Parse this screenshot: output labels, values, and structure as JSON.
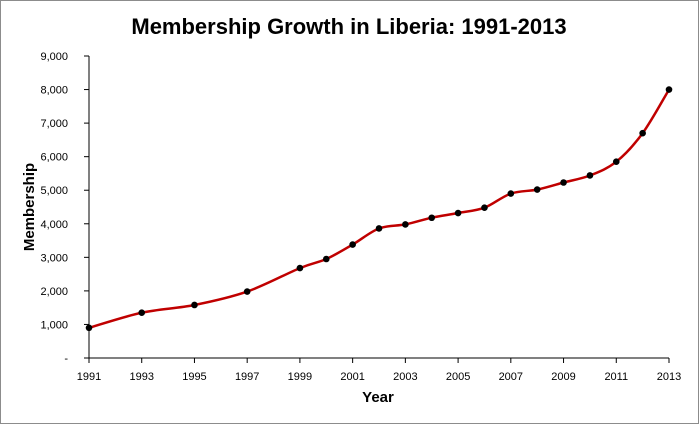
{
  "chart_data": {
    "type": "line",
    "title": "Membership Growth in Liberia: 1991-2013",
    "xlabel": "Year",
    "ylabel": "Membership",
    "xlim": [
      1991,
      2013
    ],
    "ylim": [
      0,
      9000
    ],
    "grid": false,
    "legend": "none",
    "x_ticks": [
      "1991",
      "1993",
      "1995",
      "1997",
      "1999",
      "2001",
      "2003",
      "2005",
      "2007",
      "2009",
      "2011",
      "2013"
    ],
    "y_ticks": [
      "-",
      "1,000",
      "2,000",
      "3,000",
      "4,000",
      "5,000",
      "6,000",
      "7,000",
      "8,000",
      "9,000"
    ],
    "line_color": "#c00000",
    "marker_color": "#000000",
    "series": [
      {
        "x": [
          1991,
          1993,
          1995,
          1997,
          1999,
          2000,
          2001,
          2002,
          2003,
          2004,
          2005,
          2006,
          2007,
          2008,
          2009,
          2010,
          2011,
          2012,
          2013
        ],
        "values": [
          900,
          1350,
          1580,
          1980,
          2680,
          2950,
          3380,
          3860,
          3980,
          4180,
          4320,
          4480,
          4900,
          5020,
          5230,
          5440,
          5850,
          6700,
          8000
        ]
      }
    ]
  }
}
